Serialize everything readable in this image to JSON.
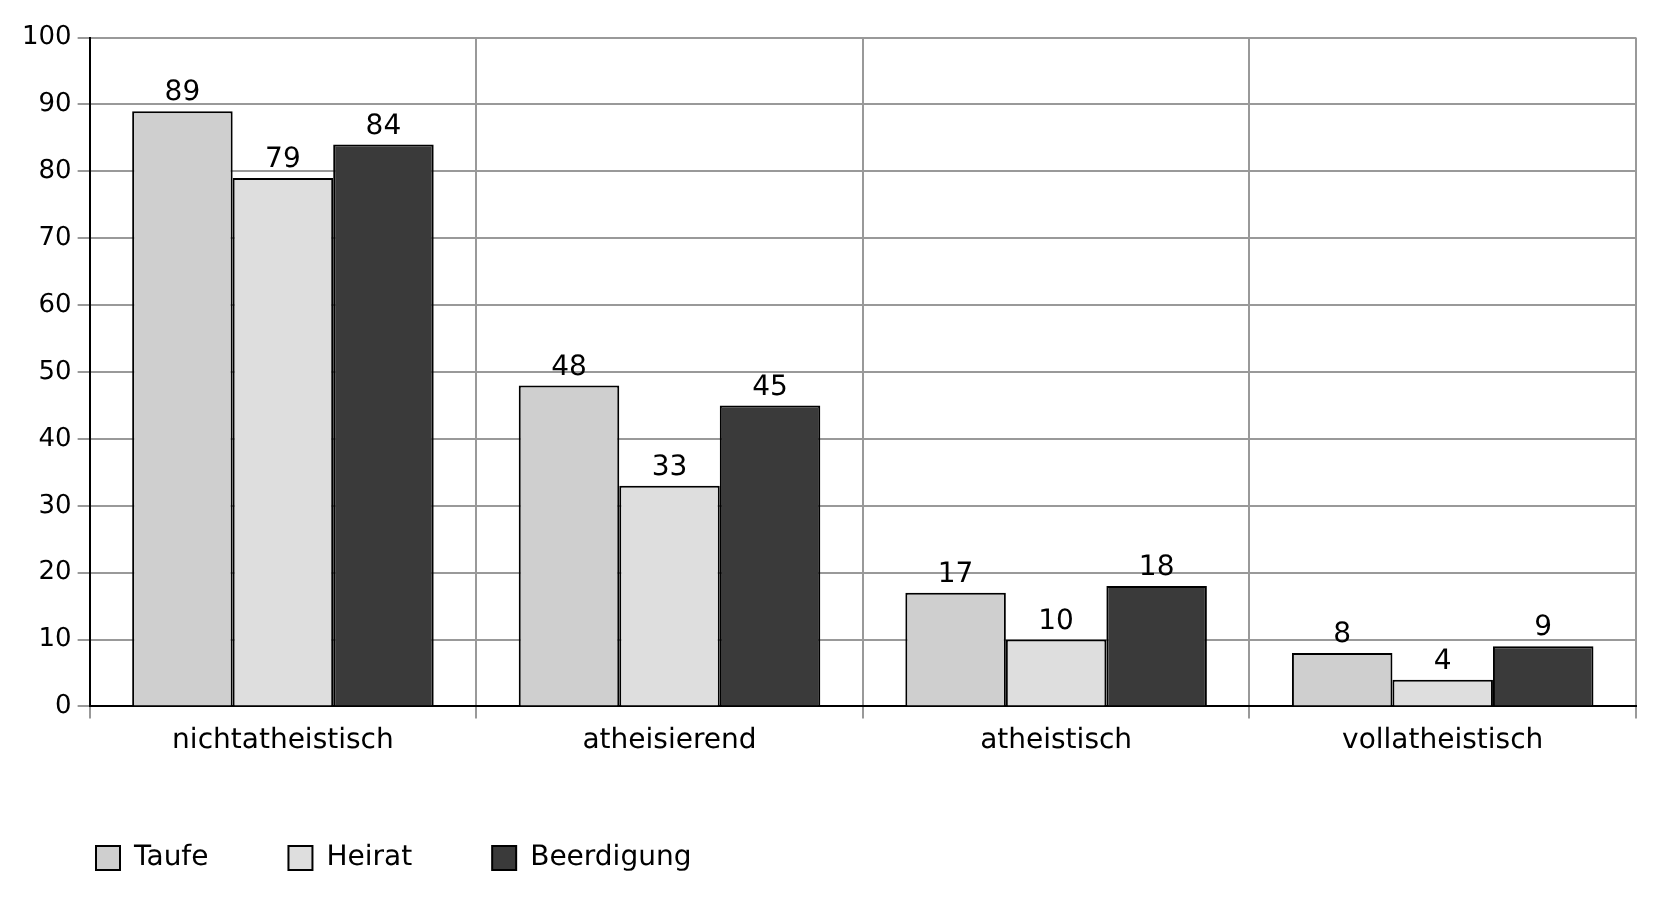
{
  "chart_data": {
    "type": "bar",
    "categories": [
      "nichtatheistisch",
      "atheisierend",
      "atheistisch",
      "vollatheistisch"
    ],
    "series": [
      {
        "name": "Taufe",
        "color": "#cfcfcf",
        "values": [
          89,
          48,
          17,
          8
        ]
      },
      {
        "name": "Heirat",
        "color": "#dedede",
        "values": [
          79,
          33,
          10,
          4
        ]
      },
      {
        "name": "Beerdigung",
        "color": "#3a3a3a",
        "values": [
          84,
          45,
          18,
          9
        ]
      }
    ],
    "ylim": [
      0,
      100
    ],
    "yticks": [
      0,
      10,
      20,
      30,
      40,
      50,
      60,
      70,
      80,
      90,
      100
    ],
    "grid": true,
    "legend": "bottom left",
    "data_labels": true
  }
}
